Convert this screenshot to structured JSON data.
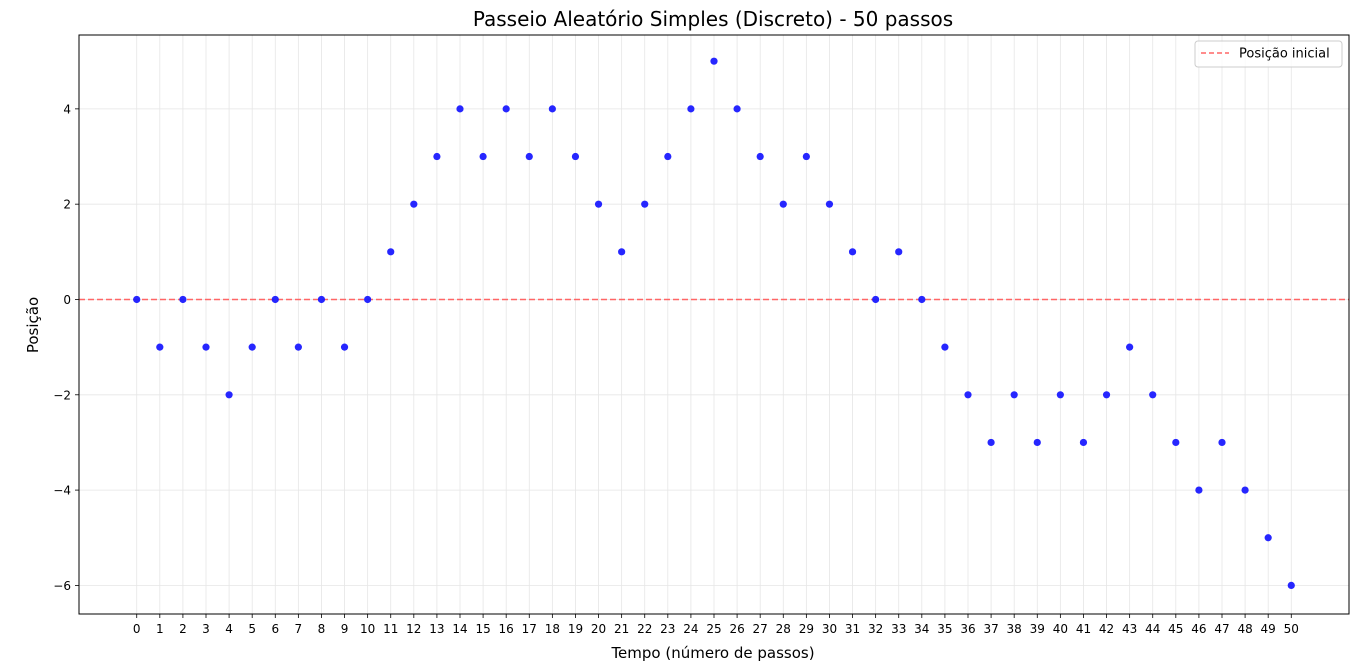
{
  "chart_data": {
    "type": "scatter",
    "title": "Passeio Aleatório Simples (Discreto) - 50 passos",
    "xlabel": "Tempo (número de passos)",
    "ylabel": "Posição",
    "xlim": [
      -2.5,
      52.5
    ],
    "ylim": [
      -6.6,
      5.55
    ],
    "xticks": [
      0,
      1,
      2,
      3,
      4,
      5,
      6,
      7,
      8,
      9,
      10,
      11,
      12,
      13,
      14,
      15,
      16,
      17,
      18,
      19,
      20,
      21,
      22,
      23,
      24,
      25,
      26,
      27,
      28,
      29,
      30,
      31,
      32,
      33,
      34,
      35,
      36,
      37,
      38,
      39,
      40,
      41,
      42,
      43,
      44,
      45,
      46,
      47,
      48,
      49,
      50
    ],
    "yticks": [
      -6,
      -4,
      -2,
      0,
      2,
      4
    ],
    "ytick_labels": [
      "−6",
      "−4",
      "−2",
      "0",
      "2",
      "4"
    ],
    "grid": true,
    "legend_position": "top-right",
    "series": [
      {
        "color": "#1a1aff",
        "x": [
          0,
          1,
          2,
          3,
          4,
          5,
          6,
          7,
          8,
          9,
          10,
          11,
          12,
          13,
          14,
          15,
          16,
          17,
          18,
          19,
          20,
          21,
          22,
          23,
          24,
          25,
          26,
          27,
          28,
          29,
          30,
          31,
          32,
          33,
          34,
          35,
          36,
          37,
          38,
          39,
          40,
          41,
          42,
          43,
          44,
          45,
          46,
          47,
          48,
          49,
          50
        ],
        "y": [
          0,
          -1,
          0,
          -1,
          -2,
          -1,
          0,
          -1,
          0,
          -1,
          0,
          1,
          2,
          3,
          4,
          3,
          4,
          3,
          4,
          3,
          2,
          1,
          2,
          3,
          4,
          5,
          4,
          3,
          2,
          3,
          2,
          1,
          0,
          1,
          0,
          -1,
          -2,
          -3,
          -2,
          -3,
          -2,
          -3,
          -2,
          -1,
          -2,
          -3,
          -4,
          -3,
          -4,
          -5,
          -6
        ]
      }
    ],
    "reference_line": {
      "name": "Posição inicial",
      "y": 0,
      "color": "#ff6666",
      "style": "dashed"
    }
  }
}
